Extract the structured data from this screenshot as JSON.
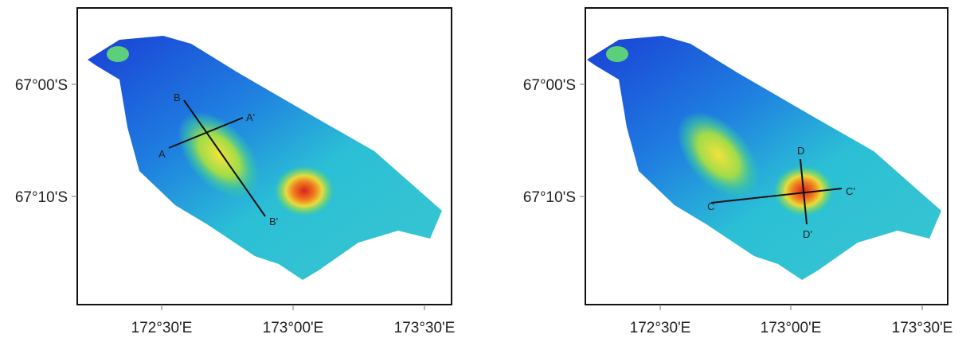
{
  "panels": [
    {
      "y_labels": [
        "67°00'S",
        "67°10'S"
      ],
      "x_labels": [
        "172°30'E",
        "173°00'E",
        "173°30'E"
      ],
      "profiles": [
        {
          "start": "A",
          "end": "A'"
        },
        {
          "start": "B",
          "end": "B'"
        }
      ]
    },
    {
      "y_labels": [
        "67°00'S",
        "67°10'S"
      ],
      "x_labels": [
        "172°30'E",
        "173°00'E",
        "173°30'E"
      ],
      "profiles": [
        {
          "start": "C",
          "end": "C'"
        },
        {
          "start": "D",
          "end": "D'"
        }
      ]
    }
  ]
}
